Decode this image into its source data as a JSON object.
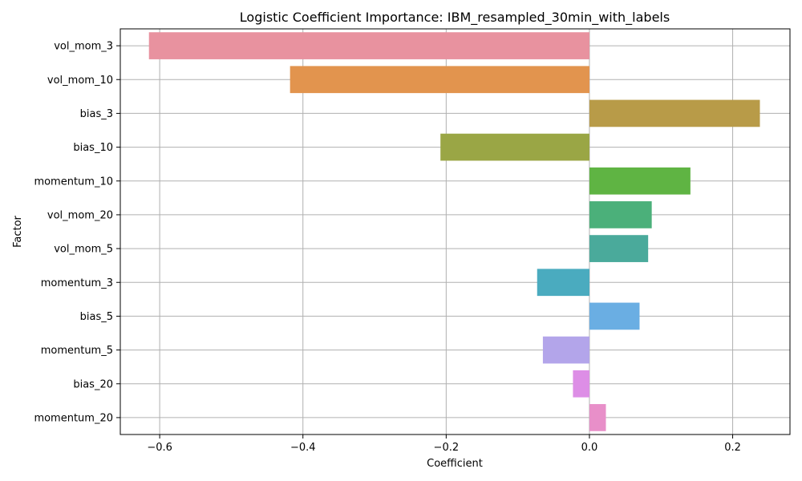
{
  "chart_data": {
    "type": "bar",
    "orientation": "horizontal",
    "title": "Logistic Coefficient Importance: IBM_resampled_30min_with_labels",
    "xlabel": "Coefficient",
    "ylabel": "Factor",
    "xlim": [
      -0.655,
      0.28
    ],
    "xticks": [
      -0.6,
      -0.4,
      -0.2,
      0.0,
      0.2
    ],
    "xtick_labels": [
      "−0.6",
      "−0.4",
      "−0.2",
      "0.0",
      "0.2"
    ],
    "grid": true,
    "categories": [
      "vol_mom_3",
      "vol_mom_10",
      "bias_3",
      "bias_10",
      "momentum_10",
      "vol_mom_20",
      "vol_mom_5",
      "momentum_3",
      "bias_5",
      "momentum_5",
      "bias_20",
      "momentum_20"
    ],
    "values": [
      -0.615,
      -0.418,
      0.238,
      -0.208,
      0.141,
      0.087,
      0.082,
      -0.073,
      0.07,
      -0.065,
      -0.023,
      0.023
    ],
    "colors": [
      "#e8929f",
      "#e2944e",
      "#b89b48",
      "#9aa645",
      "#5fb443",
      "#4bb07a",
      "#4aaa9b",
      "#4aabbf",
      "#6aaee3",
      "#b3a5ea",
      "#dd8ee6",
      "#e88fc9"
    ]
  }
}
